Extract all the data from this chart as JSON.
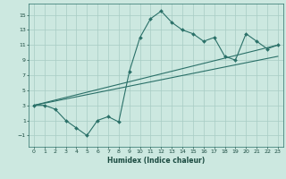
{
  "title": "",
  "xlabel": "Humidex (Indice chaleur)",
  "ylabel": "",
  "xlim": [
    -0.5,
    23.5
  ],
  "ylim": [
    -2.5,
    16.5
  ],
  "yticks": [
    -1,
    1,
    3,
    5,
    7,
    9,
    11,
    13,
    15
  ],
  "xticks": [
    0,
    1,
    2,
    3,
    4,
    5,
    6,
    7,
    8,
    9,
    10,
    11,
    12,
    13,
    14,
    15,
    16,
    17,
    18,
    19,
    20,
    21,
    22,
    23
  ],
  "bg_color": "#cce8e0",
  "grid_color": "#a8ccc4",
  "line_color": "#2a7068",
  "line1_x": [
    0,
    1,
    2,
    3,
    4,
    5,
    6,
    7,
    8,
    9,
    10,
    11,
    12,
    13,
    14,
    15,
    16,
    17,
    18,
    19,
    20,
    21,
    22,
    23
  ],
  "line1_y": [
    3.0,
    3.0,
    2.5,
    1.0,
    0.0,
    -1.0,
    1.0,
    1.5,
    0.8,
    7.5,
    12.0,
    14.5,
    15.5,
    14.0,
    13.0,
    12.5,
    11.5,
    12.0,
    9.5,
    9.0,
    12.5,
    11.5,
    10.5,
    11.0
  ],
  "line2_x": [
    0,
    23
  ],
  "line2_y": [
    3.0,
    11.0
  ],
  "line3_x": [
    0,
    23
  ],
  "line3_y": [
    3.0,
    9.5
  ]
}
